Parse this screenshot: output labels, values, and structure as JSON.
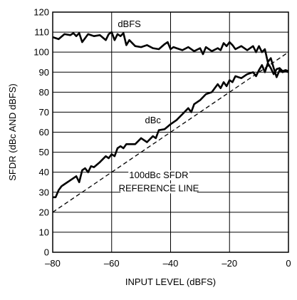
{
  "chart_data": {
    "type": "line",
    "title": "",
    "xlabel": "INPUT LEVEL (dBFS)",
    "ylabel": "SFDR (dBc AND dBFS)",
    "xlim": [
      -80,
      0
    ],
    "ylim": [
      0,
      120
    ],
    "xticks": [
      -80,
      -60,
      -40,
      -20,
      0
    ],
    "xtick_labels": [
      "–80",
      "–60",
      "–40",
      "–20",
      "0"
    ],
    "yticks": [
      0,
      10,
      20,
      30,
      40,
      50,
      60,
      70,
      80,
      90,
      100,
      110,
      120
    ],
    "ytick_labels": [
      "0",
      "10",
      "20",
      "30",
      "40",
      "50",
      "60",
      "70",
      "80",
      "90",
      "100",
      "110",
      "120"
    ],
    "grid": true,
    "legend": "none",
    "series": [
      {
        "name": "dBFS",
        "style": "solid",
        "x": [
          -80,
          -78,
          -76,
          -74,
          -73,
          -72,
          -71,
          -70,
          -68,
          -66,
          -64,
          -62,
          -61,
          -60,
          -59,
          -58,
          -57,
          -56,
          -55,
          -54,
          -52,
          -50,
          -48,
          -46,
          -44,
          -42,
          -41,
          -40,
          -39,
          -38,
          -36,
          -34,
          -32,
          -30,
          -29,
          -28,
          -26,
          -24,
          -23,
          -22,
          -21,
          -20,
          -19,
          -18,
          -16,
          -14,
          -12,
          -11,
          -10,
          -9,
          -8,
          -7,
          -6,
          -5,
          -4,
          -3,
          -2,
          -1,
          0
        ],
        "y": [
          107.5,
          106.5,
          109,
          108.5,
          109.5,
          108,
          109.5,
          105,
          109,
          108,
          108.5,
          106,
          109,
          110,
          106,
          109,
          108,
          109.5,
          103.5,
          106,
          103,
          102.5,
          103.5,
          102,
          101.5,
          104,
          105,
          101.5,
          102.5,
          102,
          101,
          102.5,
          100.5,
          102,
          99,
          102.5,
          100.5,
          102,
          101,
          104.5,
          103,
          105,
          103.5,
          101.5,
          103,
          101,
          103,
          100,
          103,
          100,
          101.5,
          95,
          97,
          92,
          87.5,
          91,
          90,
          90.5,
          90
        ]
      },
      {
        "name": "dBc",
        "style": "solid",
        "x": [
          -80,
          -79,
          -78,
          -77,
          -76,
          -74,
          -72,
          -71,
          -70,
          -69,
          -68,
          -67,
          -66,
          -64,
          -62,
          -61,
          -60,
          -59,
          -58,
          -57,
          -56,
          -55,
          -54,
          -52,
          -50,
          -48,
          -46,
          -45,
          -44,
          -42,
          -40,
          -38,
          -36,
          -34,
          -33,
          -32,
          -30,
          -28,
          -26,
          -24,
          -23,
          -22,
          -21,
          -20,
          -19,
          -18,
          -16,
          -14,
          -12,
          -11,
          -10,
          -9,
          -8,
          -7,
          -6,
          -5,
          -4,
          -3,
          -2,
          -1,
          0
        ],
        "y": [
          27.5,
          27.5,
          31,
          33,
          34,
          36,
          38,
          35,
          41,
          42,
          40,
          43,
          42.5,
          45,
          48,
          47,
          49,
          48,
          52,
          53,
          52,
          54,
          54,
          54,
          57,
          55,
          58,
          57,
          61,
          61.5,
          64,
          66,
          69,
          72,
          70,
          74,
          76,
          79,
          80,
          84,
          82,
          85,
          83,
          86,
          85,
          88,
          87,
          89,
          90,
          88,
          91,
          93.5,
          90,
          94.5,
          92,
          89,
          91.5,
          92,
          90.5,
          91,
          90.5
        ]
      },
      {
        "name": "100dBc SFDR REFERENCE LINE",
        "style": "dashed",
        "x": [
          -80,
          0
        ],
        "y": [
          20,
          100
        ]
      }
    ],
    "annotations": [
      {
        "text": "dBFS",
        "x": -54,
        "y": 112.5
      },
      {
        "text": "dBc",
        "x": -46,
        "y": 64.5
      },
      {
        "text": "100dBc SFDR",
        "x": -44,
        "y": 37
      },
      {
        "text": "REFERENCE LINE",
        "x": -44,
        "y": 30.5
      }
    ]
  }
}
